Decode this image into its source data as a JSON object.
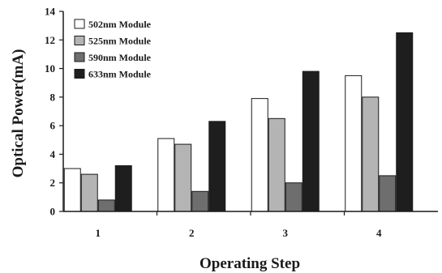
{
  "chart_data": {
    "type": "bar",
    "title": "",
    "xlabel": "Operating Step",
    "ylabel": "Optical Power(mA)",
    "categories": [
      "1",
      "2",
      "3",
      "4"
    ],
    "ylim": [
      0,
      14
    ],
    "yticks": [
      0,
      2,
      4,
      6,
      8,
      10,
      12,
      14
    ],
    "grid": false,
    "legend_position": "top-left",
    "series": [
      {
        "name": "502nm Module",
        "color": "#ffffff",
        "values": [
          3.0,
          5.1,
          7.9,
          9.5
        ]
      },
      {
        "name": "525nm Module",
        "color": "#b4b4b4",
        "values": [
          2.6,
          4.7,
          6.5,
          8.0
        ]
      },
      {
        "name": "590nm Module",
        "color": "#6e6e6e",
        "values": [
          0.8,
          1.4,
          2.0,
          2.5
        ]
      },
      {
        "name": "633nm Module",
        "color": "#1e1e1e",
        "values": [
          3.2,
          6.3,
          9.8,
          12.5
        ]
      }
    ]
  }
}
